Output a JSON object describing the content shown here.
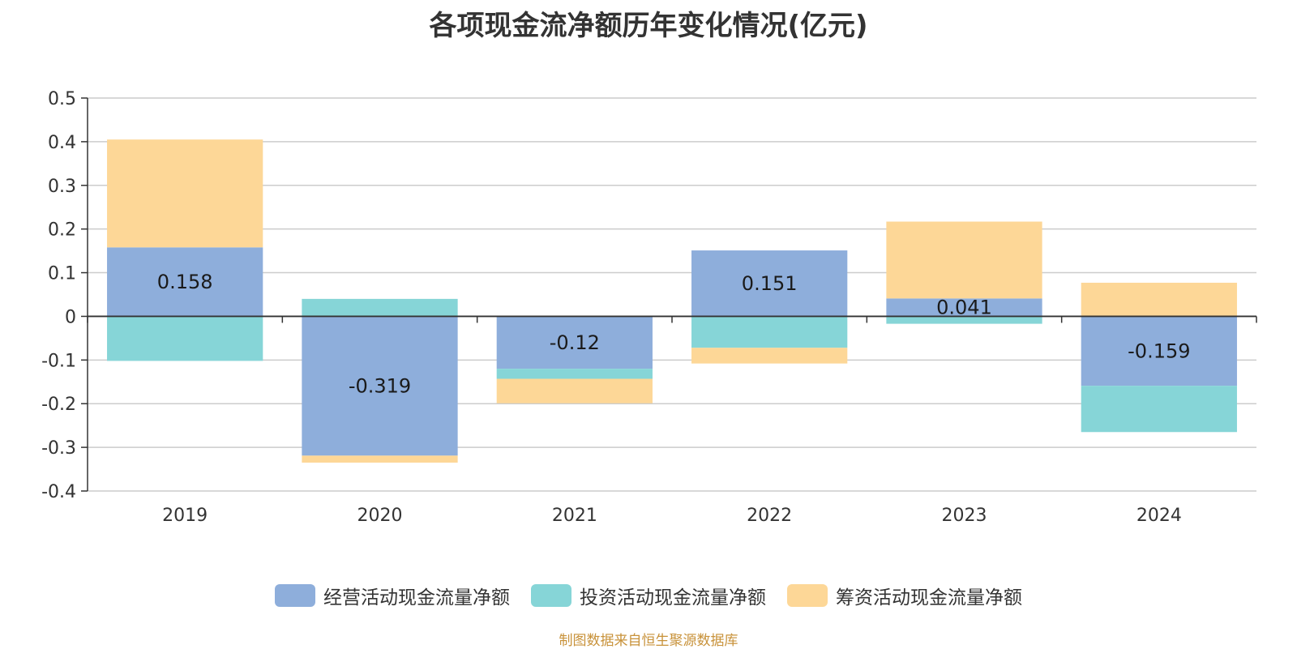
{
  "chart_data": {
    "type": "bar",
    "stacked": true,
    "title": "各项现金流净额历年变化情况(亿元)",
    "categories": [
      "2019",
      "2020",
      "2021",
      "2022",
      "2023",
      "2024"
    ],
    "series": [
      {
        "name": "经营活动现金流量净额",
        "color": "#8eaedb",
        "values": [
          0.158,
          -0.319,
          -0.12,
          0.151,
          0.041,
          -0.159
        ],
        "labels": [
          "0.158",
          "-0.319",
          "-0.12",
          "0.151",
          "0.041",
          "-0.159"
        ]
      },
      {
        "name": "投资活动现金流量净额",
        "color": "#86d5d7",
        "values": [
          -0.102,
          0.04,
          -0.023,
          -0.072,
          -0.017,
          -0.106
        ]
      },
      {
        "name": "筹资活动现金流量净额",
        "color": "#fdd797",
        "values": [
          0.247,
          -0.016,
          -0.056,
          -0.036,
          0.176,
          0.077
        ]
      }
    ],
    "yticks": [
      "0.5",
      "0.4",
      "0.3",
      "0.2",
      "0.1",
      "0",
      "-0.1",
      "-0.2",
      "-0.3",
      "-0.4"
    ],
    "ylim": [
      -0.4,
      0.5
    ],
    "grid": true,
    "legend_position": "bottom"
  },
  "source_note": "制图数据来自恒生聚源数据库"
}
